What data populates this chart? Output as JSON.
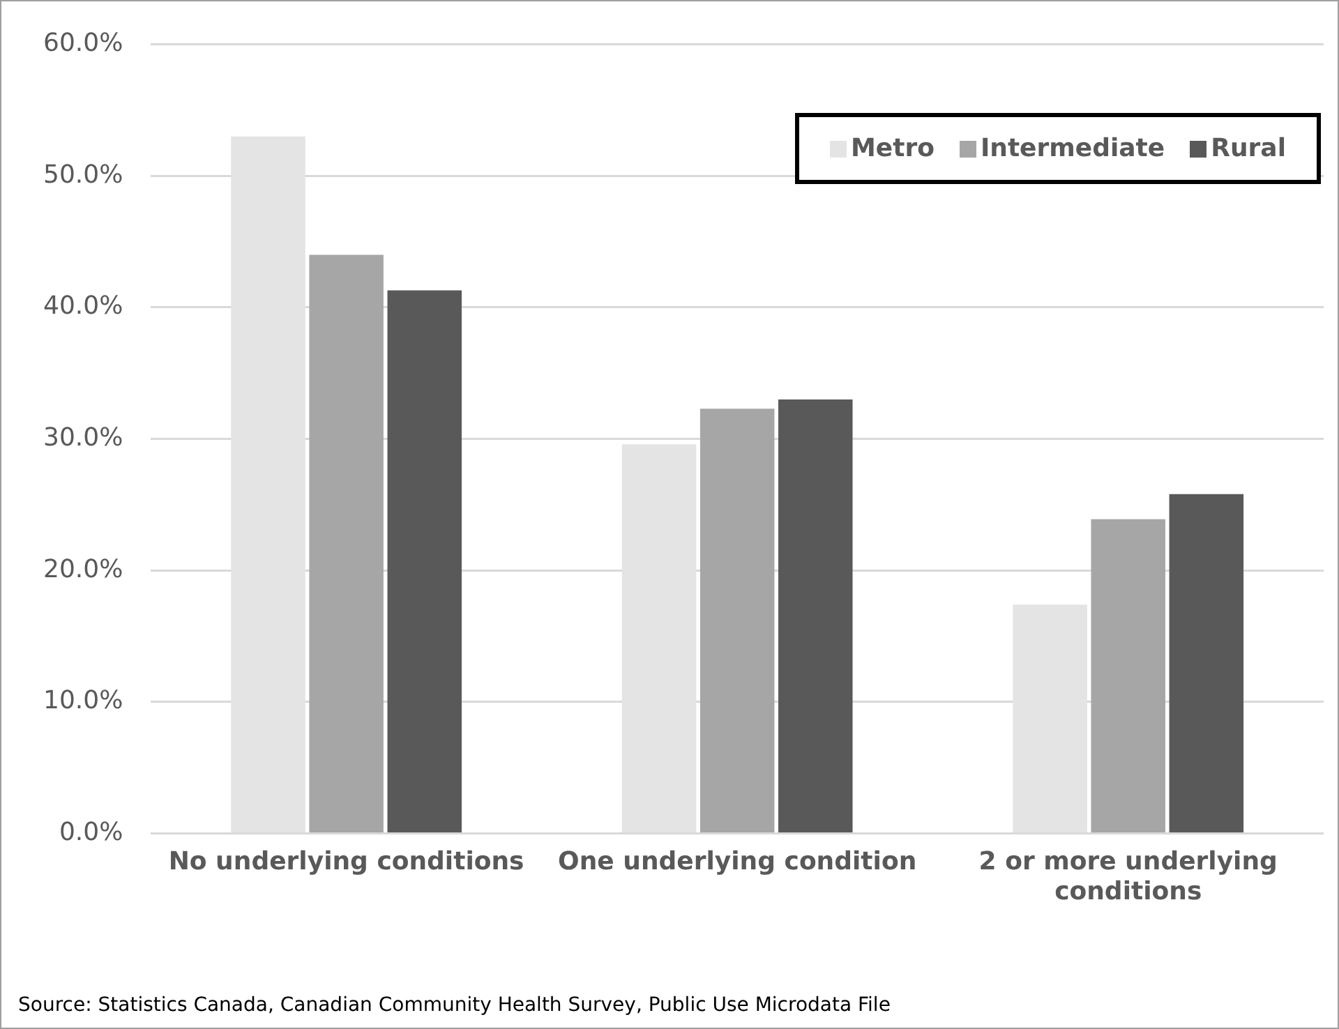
{
  "chart_data": {
    "type": "bar",
    "categories": [
      "No underlying conditions",
      "One underlying condition",
      "2 or more underlying conditions"
    ],
    "series": [
      {
        "name": "Metro",
        "color": "#e4e4e4",
        "values": [
          53.0,
          29.6,
          17.4
        ]
      },
      {
        "name": "Intermediate",
        "color": "#a6a6a6",
        "values": [
          44.0,
          32.3,
          23.9
        ]
      },
      {
        "name": "Rural",
        "color": "#595959",
        "values": [
          41.3,
          33.0,
          25.8
        ]
      }
    ],
    "ylim": [
      0,
      60
    ],
    "yticks": [
      {
        "value": 0,
        "label": "0.0%"
      },
      {
        "value": 10,
        "label": "10.0%"
      },
      {
        "value": 20,
        "label": "20.0%"
      },
      {
        "value": 30,
        "label": "30.0%"
      },
      {
        "value": 40,
        "label": "40.0%"
      },
      {
        "value": 50,
        "label": "50.0%"
      },
      {
        "value": 60,
        "label": "60.0%"
      }
    ],
    "grid": "y",
    "legend": "top right",
    "annotations": [
      "Source: Statistics Canada, Canadian Community Health Survey, Public Use Microdata File"
    ]
  }
}
